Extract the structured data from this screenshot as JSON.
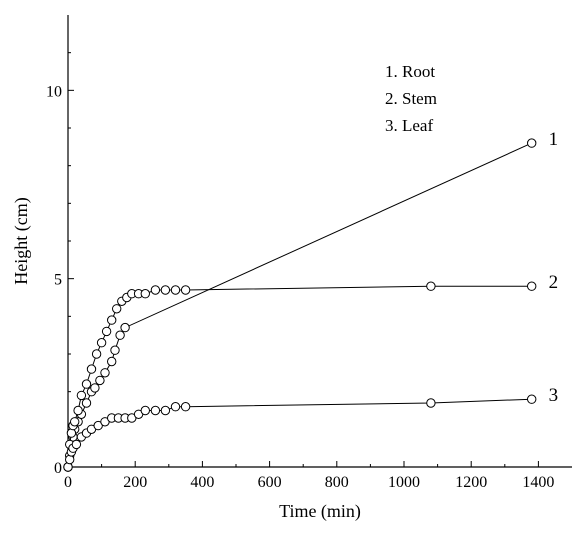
{
  "chart_data": {
    "type": "line",
    "xlabel": "Time (min)",
    "ylabel": "Height (cm)",
    "xlim": [
      0,
      1500
    ],
    "ylim": [
      0,
      12
    ],
    "x_ticks": [
      0,
      200,
      400,
      600,
      800,
      1000,
      1200,
      1400
    ],
    "y_ticks": [
      0,
      5,
      10
    ],
    "legend": [
      "1. Root",
      "2. Stem",
      "3. Leaf"
    ],
    "legend_position": "top-right",
    "grid": false,
    "series": [
      {
        "label": "1",
        "points": [
          [
            0,
            0
          ],
          [
            5,
            0.3
          ],
          [
            10,
            0.6
          ],
          [
            15,
            0.8
          ],
          [
            20,
            1.0
          ],
          [
            30,
            1.2
          ],
          [
            40,
            1.4
          ],
          [
            55,
            1.7
          ],
          [
            70,
            2.0
          ],
          [
            80,
            2.1
          ],
          [
            95,
            2.3
          ],
          [
            110,
            2.5
          ],
          [
            130,
            2.8
          ],
          [
            140,
            3.1
          ],
          [
            155,
            3.5
          ],
          [
            170,
            3.7
          ],
          [
            1380,
            8.6
          ]
        ]
      },
      {
        "label": "2",
        "points": [
          [
            0,
            0
          ],
          [
            5,
            0.6
          ],
          [
            10,
            0.9
          ],
          [
            15,
            1.1
          ],
          [
            20,
            1.2
          ],
          [
            30,
            1.5
          ],
          [
            40,
            1.9
          ],
          [
            55,
            2.2
          ],
          [
            70,
            2.6
          ],
          [
            85,
            3.0
          ],
          [
            100,
            3.3
          ],
          [
            115,
            3.6
          ],
          [
            130,
            3.9
          ],
          [
            145,
            4.2
          ],
          [
            160,
            4.4
          ],
          [
            175,
            4.5
          ],
          [
            190,
            4.6
          ],
          [
            210,
            4.6
          ],
          [
            230,
            4.6
          ],
          [
            260,
            4.7
          ],
          [
            290,
            4.7
          ],
          [
            320,
            4.7
          ],
          [
            350,
            4.7
          ],
          [
            1080,
            4.8
          ],
          [
            1380,
            4.8
          ]
        ]
      },
      {
        "label": "3",
        "points": [
          [
            0,
            0
          ],
          [
            5,
            0.2
          ],
          [
            10,
            0.4
          ],
          [
            15,
            0.5
          ],
          [
            25,
            0.6
          ],
          [
            40,
            0.8
          ],
          [
            55,
            0.9
          ],
          [
            70,
            1.0
          ],
          [
            90,
            1.1
          ],
          [
            110,
            1.2
          ],
          [
            130,
            1.3
          ],
          [
            150,
            1.3
          ],
          [
            170,
            1.3
          ],
          [
            190,
            1.3
          ],
          [
            210,
            1.4
          ],
          [
            230,
            1.5
          ],
          [
            260,
            1.5
          ],
          [
            290,
            1.5
          ],
          [
            320,
            1.6
          ],
          [
            350,
            1.6
          ],
          [
            1080,
            1.7
          ],
          [
            1380,
            1.8
          ]
        ]
      }
    ]
  }
}
